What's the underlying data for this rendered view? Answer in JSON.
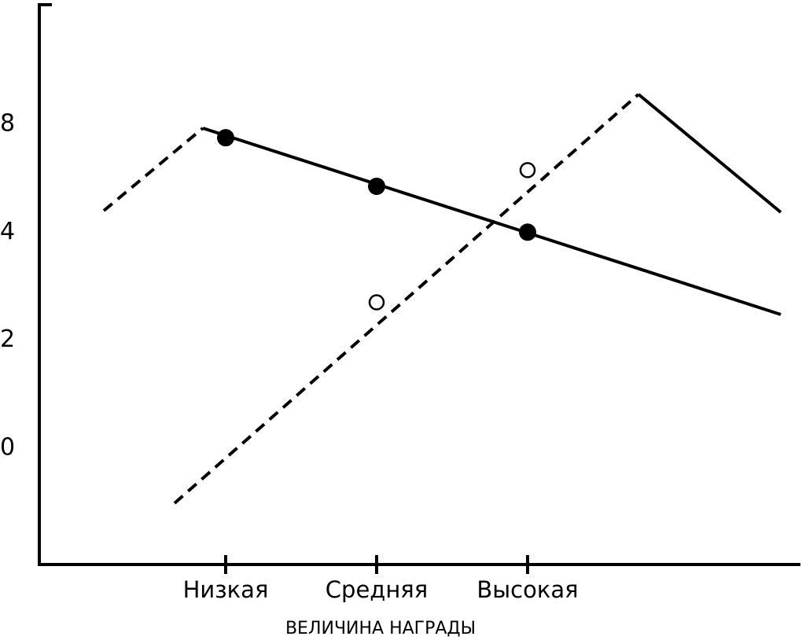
{
  "chart_data": {
    "type": "scatter",
    "x_label": "ВЕЛИЧИНА НАГРАДЫ",
    "categories": [
      "Низкая",
      "Средняя",
      "Высокая"
    ],
    "yticks": [
      8,
      4,
      2,
      0
    ],
    "series": [
      {
        "marker": "filled",
        "color": "#000000",
        "values": [
          7.5,
          5.7,
          4
        ]
      },
      {
        "marker": "open",
        "color": "#000000",
        "values": [
          null,
          2.7,
          6.3
        ]
      }
    ]
  }
}
